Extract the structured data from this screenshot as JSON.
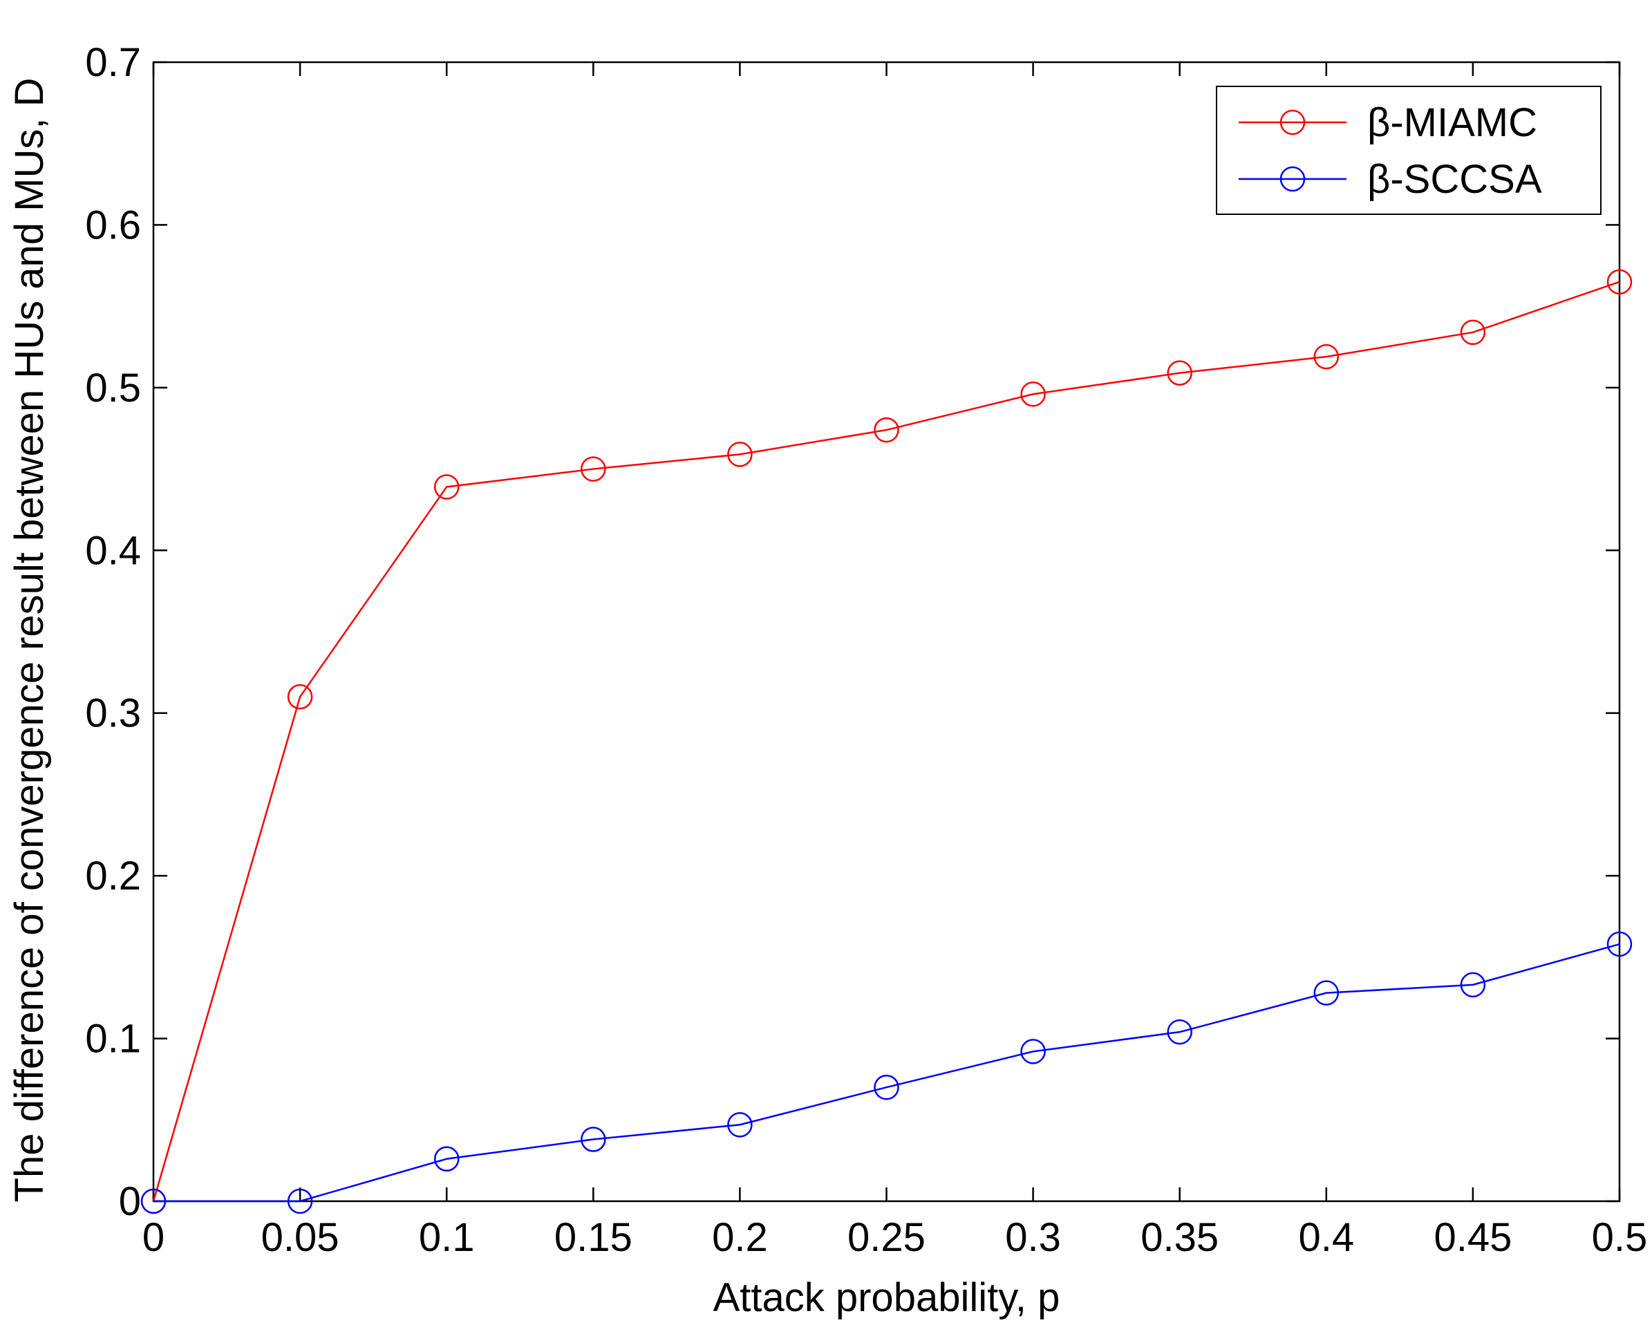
{
  "chart_data": {
    "type": "line",
    "title": "",
    "xlabel": "Attack probability, p",
    "ylabel": "The difference of convergence result between HUs and MUs, D",
    "xlim": [
      0,
      0.5
    ],
    "ylim": [
      0,
      0.7
    ],
    "x_ticks": [
      "0",
      "0.05",
      "0.1",
      "0.15",
      "0.2",
      "0.25",
      "0.3",
      "0.35",
      "0.4",
      "0.45",
      "0.5"
    ],
    "y_ticks": [
      "0",
      "0.1",
      "0.2",
      "0.3",
      "0.4",
      "0.5",
      "0.6",
      "0.7"
    ],
    "grid": false,
    "legend_position": "top-right",
    "x": [
      0,
      0.05,
      0.1,
      0.15,
      0.2,
      0.25,
      0.3,
      0.35,
      0.4,
      0.45,
      0.5
    ],
    "series": [
      {
        "name": "β-MIAMC",
        "color": "#ff0000",
        "marker": "circle",
        "values": [
          0,
          0.31,
          0.439,
          0.45,
          0.459,
          0.474,
          0.496,
          0.509,
          0.519,
          0.534,
          0.565
        ]
      },
      {
        "name": "β-SCCSA",
        "color": "#0000ff",
        "marker": "circle",
        "values": [
          0,
          0,
          0.026,
          0.038,
          0.047,
          0.07,
          0.092,
          0.104,
          0.128,
          0.133,
          0.158
        ]
      }
    ]
  }
}
